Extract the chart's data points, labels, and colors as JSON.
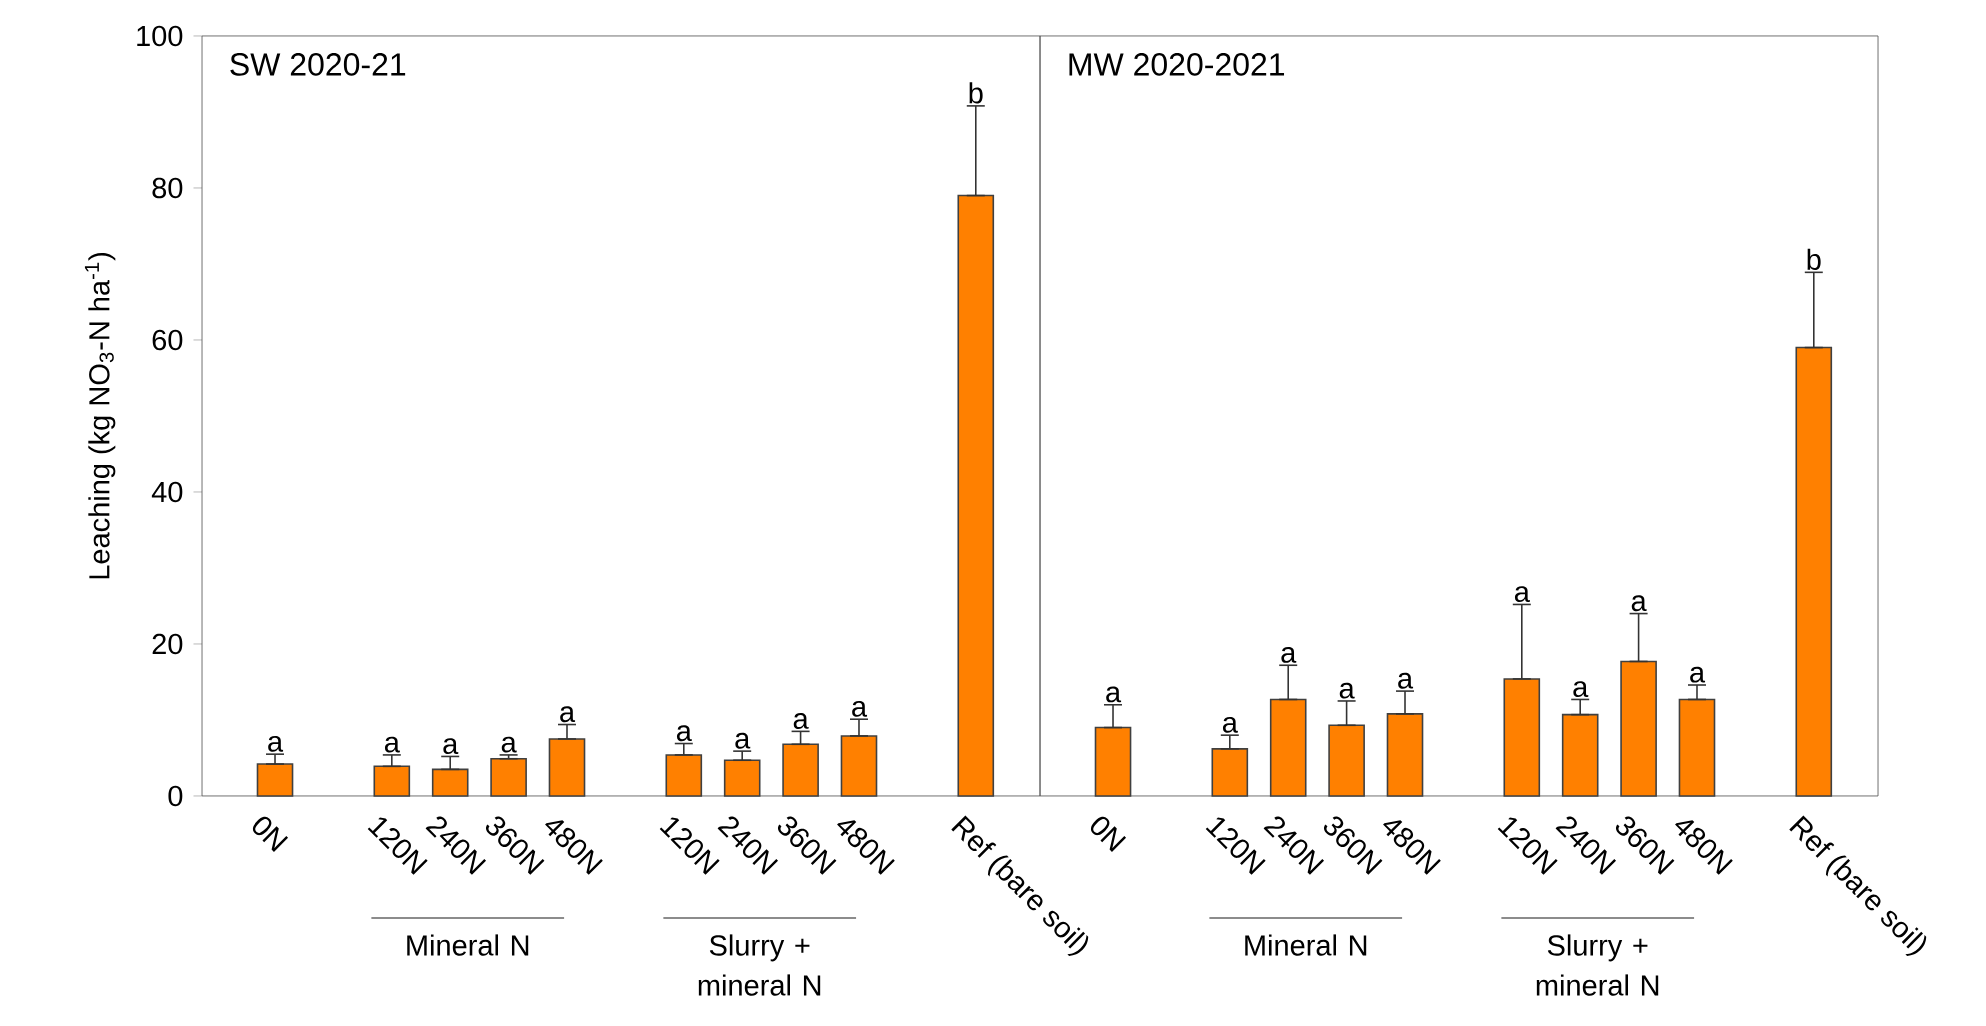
{
  "chart_data": [
    {
      "type": "bar",
      "title": "SW 2020-21",
      "ylabel": "Leaching (kg NO$_{3}$-N ha$^{-1}$)",
      "categories": [
        "0N",
        null,
        "120N",
        "240N",
        "360N",
        "480N",
        null,
        "120N",
        "240N",
        "360N",
        "480N",
        null,
        "Ref (bare soil)"
      ],
      "series": [
        {
          "color": "#ff8000",
          "values": [
            4.2,
            null,
            3.9,
            3.5,
            4.9,
            7.5,
            null,
            5.4,
            4.7,
            6.8,
            7.9,
            null,
            79
          ],
          "errors": [
            [
              4.2,
              5.5
            ],
            null,
            [
              3.9,
              5.4
            ],
            [
              3.5,
              5.2
            ],
            [
              4.9,
              5.4
            ],
            [
              7.5,
              9.4
            ],
            null,
            [
              5.4,
              6.9
            ],
            [
              4.7,
              5.9
            ],
            [
              6.8,
              8.5
            ],
            [
              7.9,
              10.1
            ],
            null,
            [
              79,
              90.8
            ]
          ],
          "value_labels": [
            "a",
            null,
            "a",
            "a",
            "a",
            "a",
            null,
            "a",
            "a",
            "a",
            "a",
            null,
            "b"
          ]
        }
      ],
      "ylim": [
        0,
        100
      ],
      "yticks": [
        0,
        20,
        40,
        60,
        80,
        100
      ],
      "annotations": [
        "Mineral N",
        "Slurry + mineral N"
      ]
    },
    {
      "type": "bar",
      "title": "MW 2020-2021",
      "categories": [
        "0N",
        null,
        "120N",
        "240N",
        "360N",
        "480N",
        null,
        "120N",
        "240N",
        "360N",
        "480N",
        null,
        "Ref (bare soil)"
      ],
      "series": [
        {
          "color": "#ff8000",
          "values": [
            9.0,
            null,
            6.2,
            12.7,
            9.3,
            10.8,
            null,
            15.4,
            10.7,
            17.7,
            12.7,
            null,
            59
          ],
          "errors": [
            [
              9.0,
              12.0
            ],
            null,
            [
              6.2,
              8.0
            ],
            [
              12.7,
              17.2
            ],
            [
              9.3,
              12.5
            ],
            [
              10.8,
              13.8
            ],
            null,
            [
              15.4,
              25.2
            ],
            [
              10.7,
              12.7
            ],
            [
              17.7,
              24.0
            ],
            [
              12.7,
              14.6
            ],
            null,
            [
              59,
              68.9
            ]
          ],
          "value_labels": [
            "a",
            null,
            "a",
            "a",
            "a",
            "a",
            null,
            "a",
            "a",
            "a",
            "a",
            null,
            "b"
          ]
        }
      ],
      "ylim": [
        0,
        100
      ],
      "tick_labels": "x",
      "annotations": [
        "Mineral N",
        "Slurry + mineral N"
      ]
    }
  ]
}
